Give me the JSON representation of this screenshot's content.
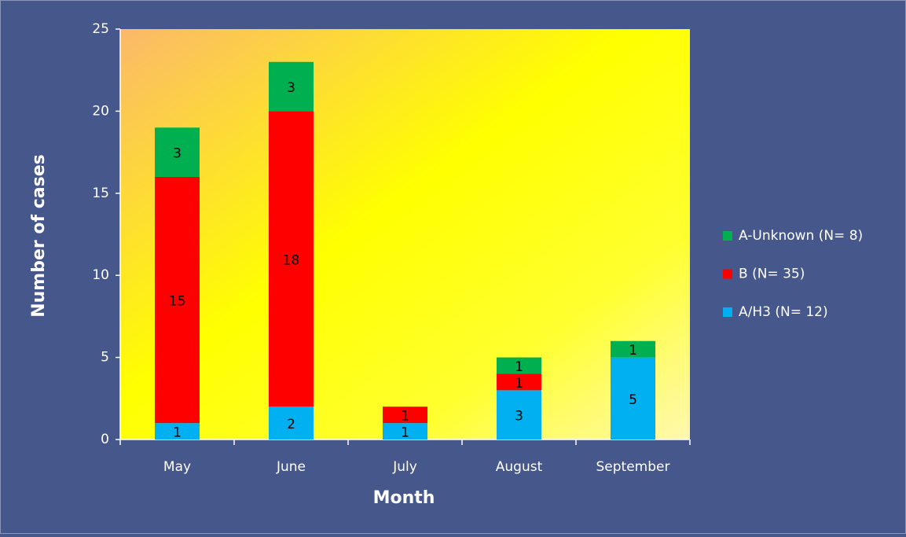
{
  "chart_data": {
    "type": "stacked-bar",
    "x_label": "Month",
    "y_label": "Number of cases",
    "categories": [
      "May",
      "June",
      "July",
      "August",
      "September"
    ],
    "series": [
      {
        "name": "A/H3 (N= 12)",
        "color": "#00b0f0",
        "values": [
          1,
          2,
          1,
          3,
          5
        ]
      },
      {
        "name": "B (N= 35)",
        "color": "#ff0000",
        "values": [
          15,
          18,
          1,
          1,
          null
        ]
      },
      {
        "name": "A-Unknown (N= 8)",
        "color": "#00b050",
        "values": [
          3,
          3,
          null,
          1,
          1
        ]
      }
    ],
    "ylim": [
      0,
      25
    ],
    "yticks": [
      0,
      5,
      10,
      15,
      20,
      25
    ],
    "legend": "right"
  }
}
